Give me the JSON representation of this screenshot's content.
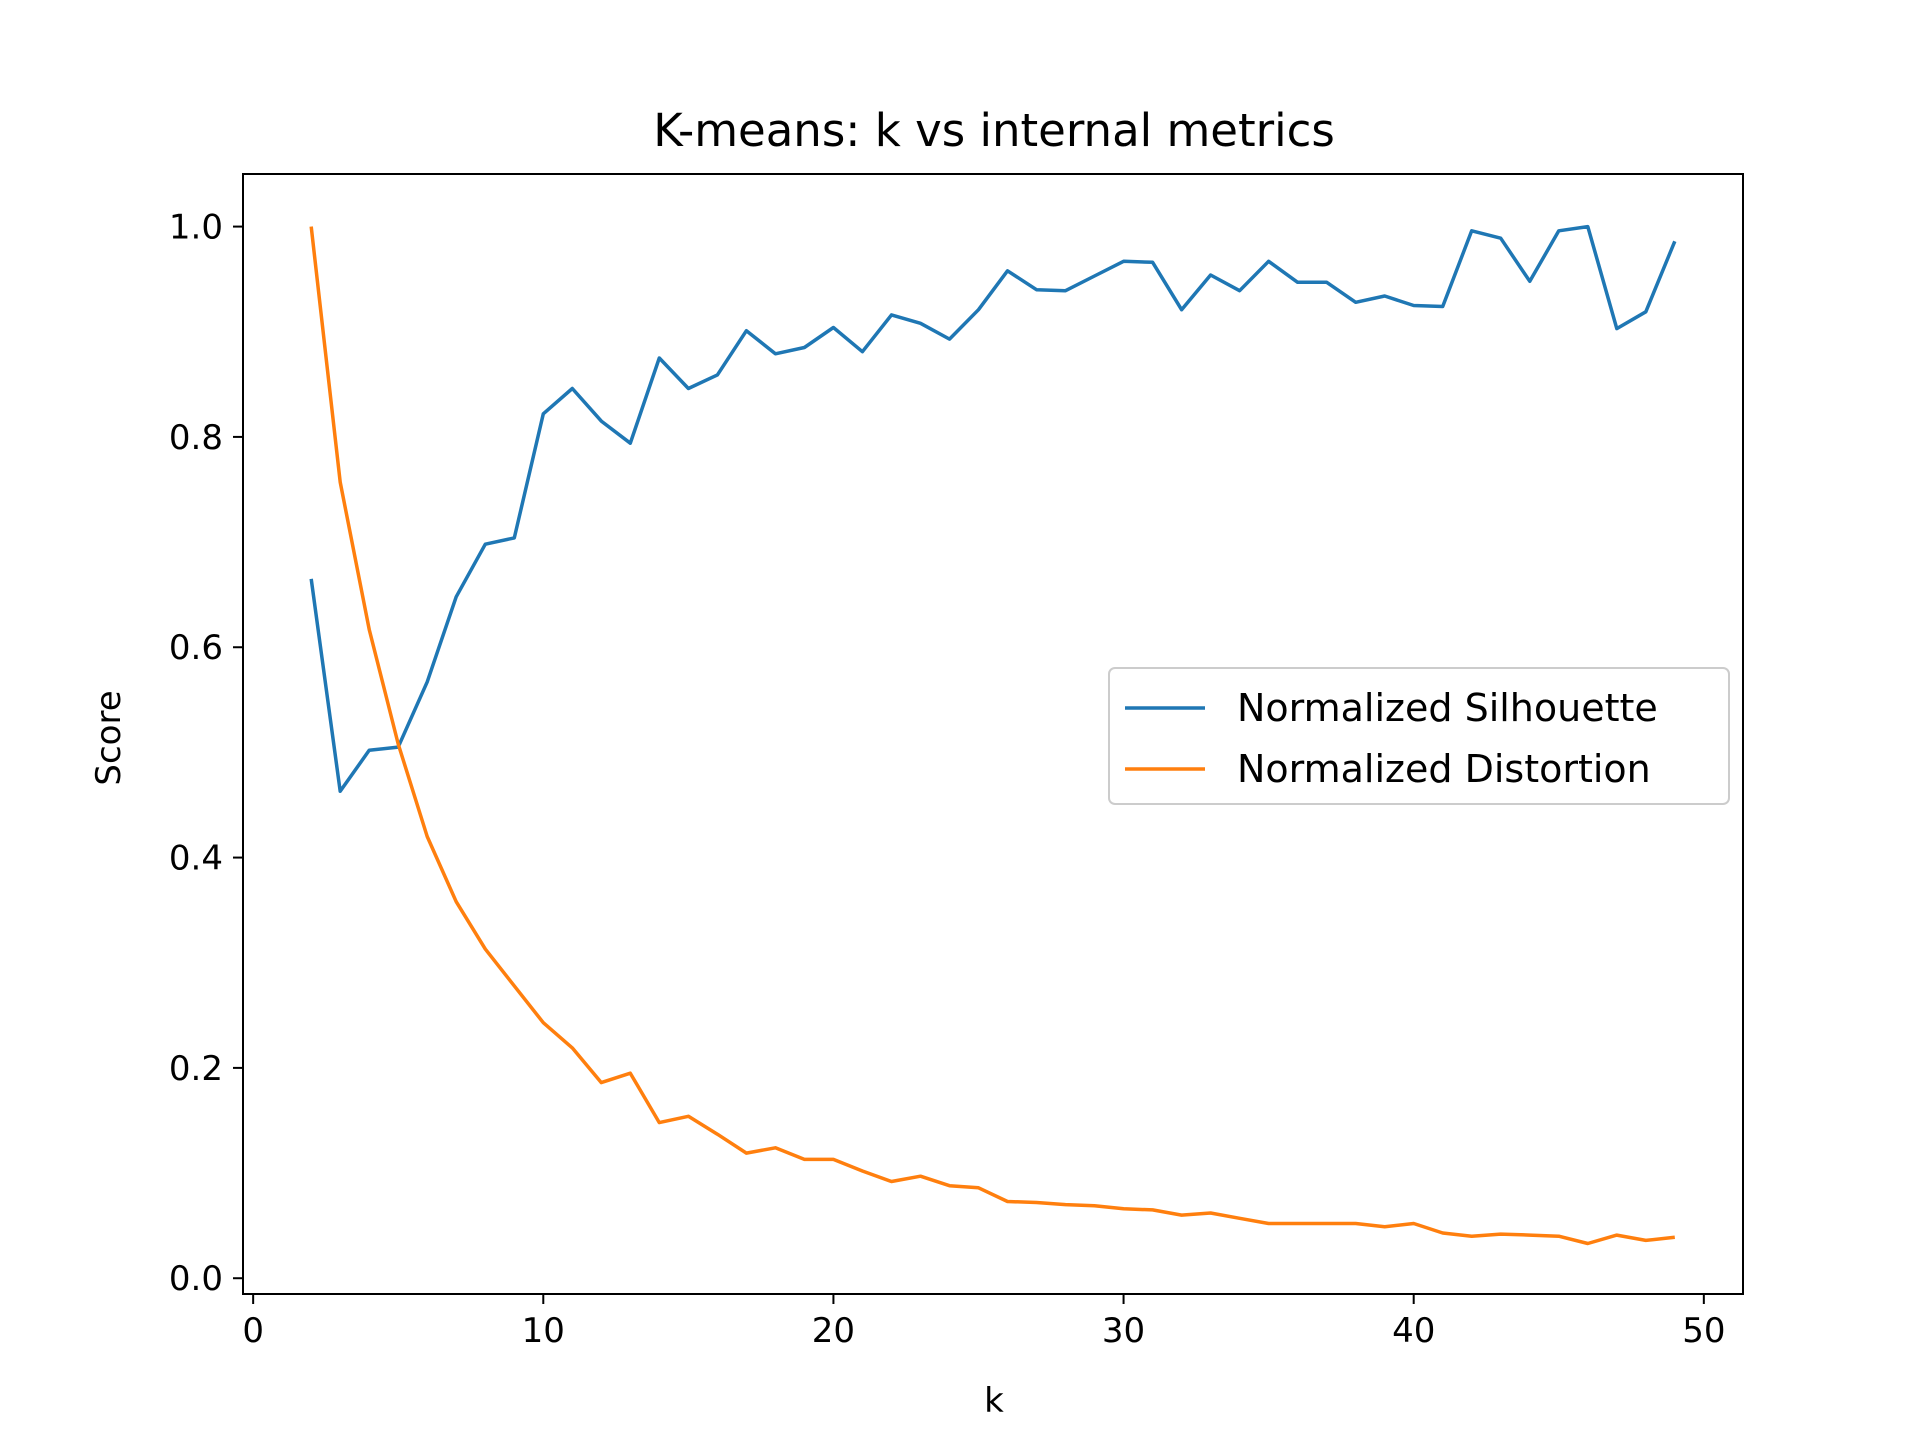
{
  "chart_data": {
    "type": "line",
    "title": "K-means: k vs internal metrics",
    "xlabel": "k",
    "ylabel": "Score",
    "xlim": [
      -0.35,
      51.35
    ],
    "ylim": [
      -0.015,
      1.05
    ],
    "xticks": [
      0,
      10,
      20,
      30,
      40,
      50
    ],
    "xtick_labels": [
      "0",
      "10",
      "20",
      "30",
      "40",
      "50"
    ],
    "yticks": [
      0.0,
      0.2,
      0.4,
      0.6,
      0.8,
      1.0
    ],
    "ytick_labels": [
      "0.0",
      "0.2",
      "0.4",
      "0.6",
      "0.8",
      "1.0"
    ],
    "grid": false,
    "legend_position": "center-right",
    "x": [
      2,
      3,
      4,
      5,
      6,
      7,
      8,
      9,
      10,
      11,
      12,
      13,
      14,
      15,
      16,
      17,
      18,
      19,
      20,
      21,
      22,
      23,
      24,
      25,
      26,
      27,
      28,
      29,
      30,
      31,
      32,
      33,
      34,
      35,
      36,
      37,
      38,
      39,
      40,
      41,
      42,
      43,
      44,
      45,
      46,
      47,
      48,
      49
    ],
    "series": [
      {
        "name": "Normalized Silhouette",
        "color": "#1f77b4",
        "values": [
          0.665,
          0.463,
          0.502,
          0.505,
          0.567,
          0.648,
          0.698,
          0.704,
          0.822,
          0.846,
          0.815,
          0.794,
          0.875,
          0.846,
          0.859,
          0.901,
          0.879,
          0.885,
          0.904,
          0.881,
          0.916,
          0.908,
          0.893,
          0.921,
          0.958,
          0.94,
          0.939,
          0.953,
          0.967,
          0.966,
          0.921,
          0.954,
          0.939,
          0.967,
          0.947,
          0.947,
          0.928,
          0.934,
          0.925,
          0.924,
          0.996,
          0.989,
          0.948,
          0.996,
          1.0,
          0.903,
          0.919,
          0.986
        ]
      },
      {
        "name": "Normalized Distortion",
        "color": "#ff7f0e",
        "values": [
          1.0,
          0.757,
          0.617,
          0.508,
          0.42,
          0.358,
          0.313,
          0.278,
          0.243,
          0.219,
          0.186,
          0.195,
          0.148,
          0.154,
          0.137,
          0.119,
          0.124,
          0.113,
          0.113,
          0.102,
          0.092,
          0.097,
          0.088,
          0.086,
          0.073,
          0.072,
          0.07,
          0.069,
          0.066,
          0.065,
          0.06,
          0.062,
          0.057,
          0.052,
          0.052,
          0.052,
          0.052,
          0.049,
          0.052,
          0.043,
          0.04,
          0.042,
          0.041,
          0.04,
          0.033,
          0.041,
          0.036,
          0.039
        ]
      }
    ]
  }
}
